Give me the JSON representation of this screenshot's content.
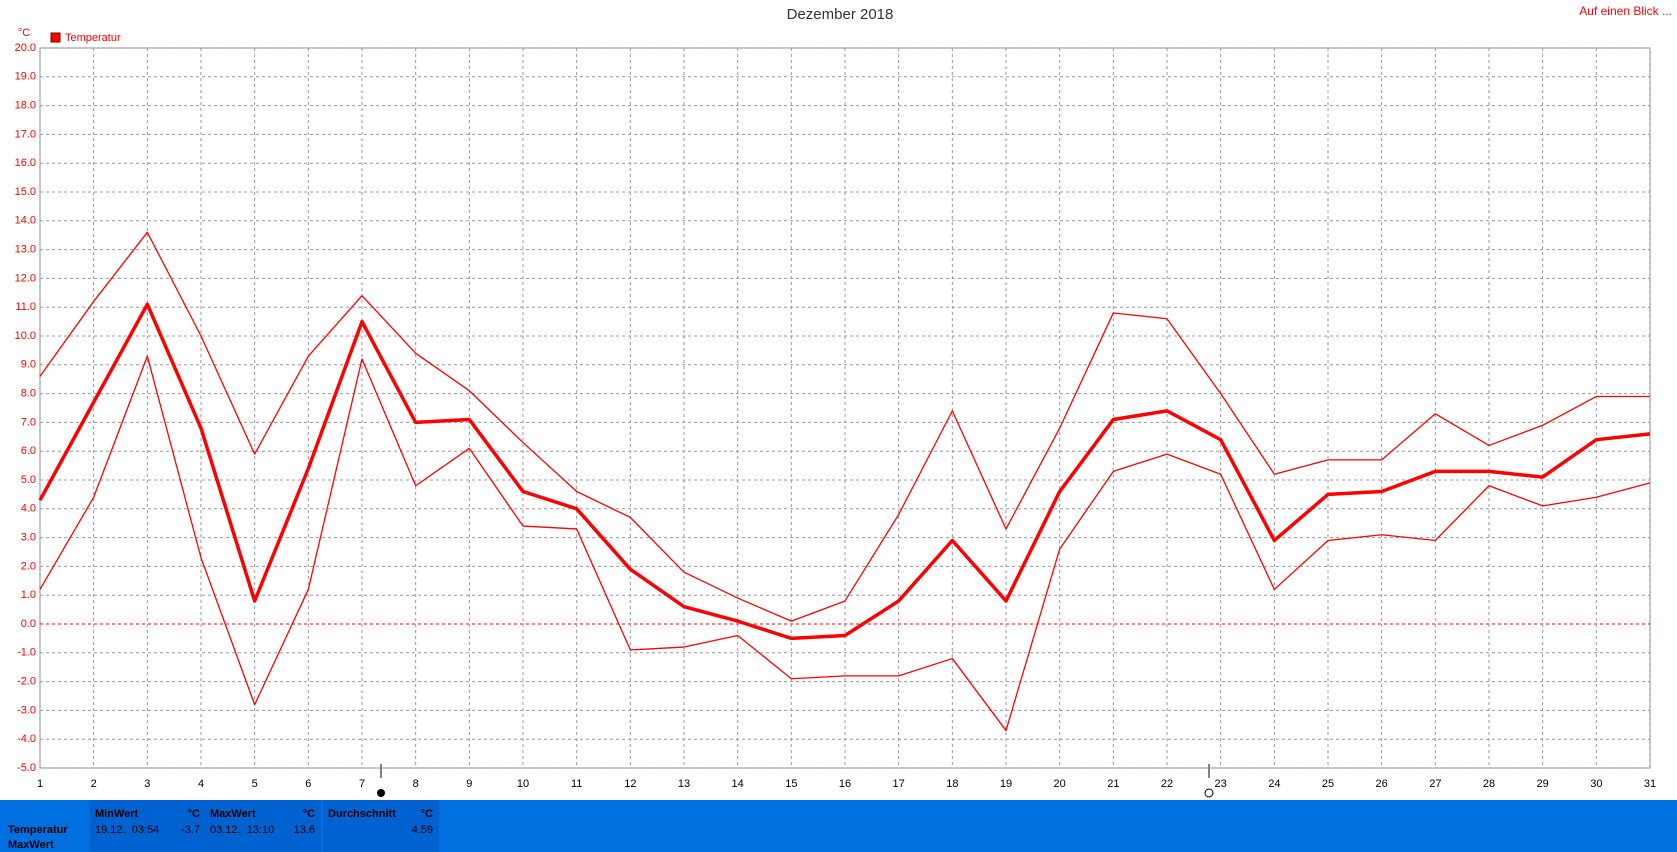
{
  "chart_data": {
    "type": "line",
    "title": "Dezember 2018",
    "ylabel": "°C",
    "legend": "Temperatur",
    "link": "Auf einen Blick ...",
    "x": [
      1,
      2,
      3,
      4,
      5,
      6,
      7,
      8,
      9,
      10,
      11,
      12,
      13,
      14,
      15,
      16,
      17,
      18,
      19,
      20,
      21,
      22,
      23,
      24,
      25,
      26,
      27,
      28,
      29,
      30,
      31
    ],
    "xlim": [
      1,
      31
    ],
    "xticks": [
      1,
      2,
      3,
      4,
      5,
      6,
      7,
      8,
      9,
      10,
      11,
      12,
      13,
      14,
      15,
      16,
      17,
      18,
      19,
      20,
      21,
      22,
      23,
      24,
      25,
      26,
      27,
      28,
      29,
      30,
      31
    ],
    "ylim": [
      -5,
      20
    ],
    "yticks": [
      {
        "value": -5,
        "label": "-5.0"
      },
      {
        "value": -4,
        "label": "-4.0"
      },
      {
        "value": -3,
        "label": "-3.0"
      },
      {
        "value": -2,
        "label": "-2.0"
      },
      {
        "value": -1,
        "label": "-1.0"
      },
      {
        "value": 0,
        "label": "0.0"
      },
      {
        "value": 1,
        "label": "1.0"
      },
      {
        "value": 2,
        "label": "2.0"
      },
      {
        "value": 3,
        "label": "3.0"
      },
      {
        "value": 4,
        "label": "4.0"
      },
      {
        "value": 5,
        "label": "5.0"
      },
      {
        "value": 6,
        "label": "6.0"
      },
      {
        "value": 7,
        "label": "7.0"
      },
      {
        "value": 8,
        "label": "8.0"
      },
      {
        "value": 9,
        "label": "9.0"
      },
      {
        "value": 10,
        "label": "10.0"
      },
      {
        "value": 11,
        "label": "11.0"
      },
      {
        "value": 12,
        "label": "12.0"
      },
      {
        "value": 13,
        "label": "13.0"
      },
      {
        "value": 14,
        "label": "14.0"
      },
      {
        "value": 15,
        "label": "15.0"
      },
      {
        "value": 16,
        "label": "16.0"
      },
      {
        "value": 17,
        "label": "17.0"
      },
      {
        "value": 18,
        "label": "18.0"
      },
      {
        "value": 19,
        "label": "19.0"
      },
      {
        "value": 20,
        "label": "20.0"
      }
    ],
    "grid": true,
    "series": [
      {
        "color": "#ff0000",
        "linewidth": 1.3,
        "values": [
          8.6,
          11.2,
          13.6,
          10.0,
          5.9,
          9.3,
          11.4,
          9.4,
          8.1,
          6.3,
          4.6,
          3.7,
          1.8,
          0.9,
          0.1,
          0.8,
          3.8,
          7.4,
          3.3,
          6.8,
          10.8,
          10.6,
          8.0,
          5.2,
          5.7,
          5.7,
          7.3,
          6.2,
          6.9,
          7.9,
          7.9
        ]
      },
      {
        "color": "#ff0000",
        "linewidth": 3.5,
        "values": [
          4.3,
          7.7,
          11.1,
          6.8,
          0.8,
          5.4,
          10.5,
          7.0,
          7.1,
          4.6,
          4.0,
          1.9,
          0.6,
          0.1,
          -0.5,
          -0.4,
          0.8,
          2.9,
          0.8,
          4.6,
          7.1,
          7.4,
          6.4,
          2.9,
          4.5,
          4.6,
          5.3,
          5.3,
          5.1,
          6.4,
          6.6
        ]
      },
      {
        "color": "#ff0000",
        "linewidth": 1.3,
        "values": [
          1.2,
          4.4,
          9.3,
          2.3,
          -2.8,
          1.2,
          9.2,
          4.8,
          6.1,
          3.4,
          3.3,
          -0.9,
          -0.8,
          -0.4,
          -1.9,
          -1.8,
          -1.8,
          -1.2,
          -3.7,
          2.6,
          5.3,
          5.9,
          5.2,
          1.2,
          2.9,
          3.1,
          2.9,
          4.8,
          4.1,
          4.4,
          4.9
        ]
      }
    ]
  },
  "summary": {
    "row_labels": [
      "Temperatur",
      "MaxWert"
    ],
    "cells": [
      {
        "header": "MinWert",
        "unit": "°C",
        "time": "19.12.  03:54",
        "value": "-3.7"
      },
      {
        "header": "MaxWert",
        "unit": "°C",
        "time": "03.12.  13:10",
        "value": "13.6"
      },
      {
        "header": "Durchschnitt",
        "unit": "°C",
        "value": "4.59"
      }
    ]
  }
}
